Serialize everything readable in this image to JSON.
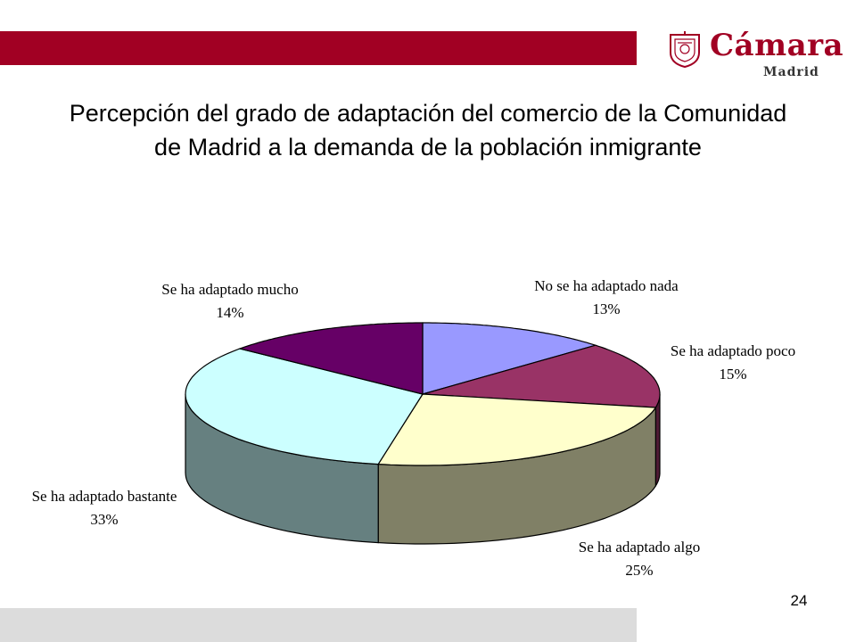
{
  "brand": {
    "name": "Cámara",
    "subtitle": "Madrid",
    "accent_color": "#a10023",
    "seal_icon": "cámara-seal-icon"
  },
  "slide": {
    "title": "Percepción del grado de adaptación del comercio de la Comunidad de Madrid a la demanda de la población inmigrante",
    "page_number": "24",
    "footer_color": "#dcdcdc"
  },
  "chart_data": {
    "type": "pie",
    "style": "3d-pie",
    "title": "",
    "slices": [
      {
        "label": "No se ha adaptado nada",
        "value": 13,
        "value_label": "13%",
        "color": "#9999ff"
      },
      {
        "label": "Se ha adaptado poco",
        "value": 15,
        "value_label": "15%",
        "color": "#993366"
      },
      {
        "label": "Se ha adaptado algo",
        "value": 25,
        "value_label": "25%",
        "color": "#ffffcc"
      },
      {
        "label": "Se ha adaptado bastante",
        "value": 33,
        "value_label": "33%",
        "color": "#ccffff"
      },
      {
        "label": "Se ha adaptado mucho",
        "value": 14,
        "value_label": "14%",
        "color": "#660066"
      }
    ],
    "legend": "none"
  }
}
